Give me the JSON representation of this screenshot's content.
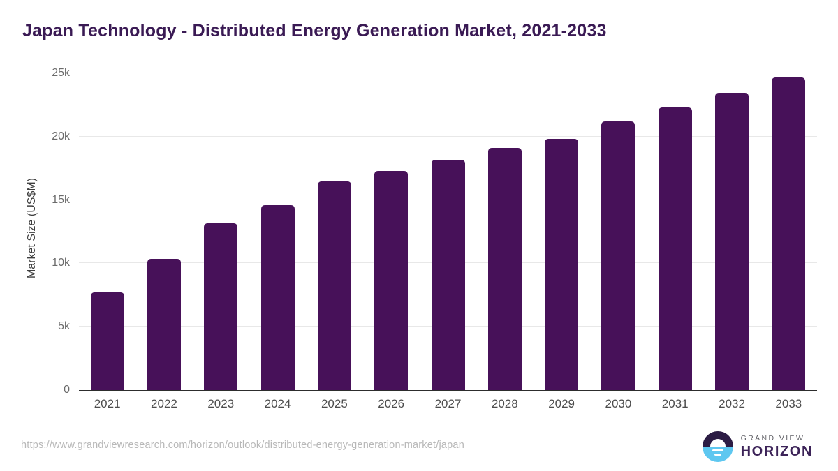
{
  "page": {
    "title": "Japan Technology - Distributed Energy Generation Market, 2021-2033",
    "source_url": "https://www.grandviewresearch.com/horizon/outlook/distributed-energy-generation-market/japan"
  },
  "logo": {
    "line1": "GRAND VIEW",
    "line2": "HORIZON"
  },
  "colors": {
    "bar": "#471159",
    "title_text": "#3a1a54",
    "axis_label_text": "#4d4d4d",
    "gridline": "#e8e8e8",
    "baseline": "#2d2d2d",
    "source_url_text": "#b8b8b8",
    "logo_dark": "#2c1c44",
    "logo_blue": "#5ec7f0"
  },
  "chart_data": {
    "type": "bar",
    "title": "Japan Technology - Distributed Energy Generation Market, 2021-2033",
    "xlabel": "",
    "ylabel": "Market Size (US$M)",
    "categories": [
      "2021",
      "2022",
      "2023",
      "2024",
      "2025",
      "2026",
      "2027",
      "2028",
      "2029",
      "2030",
      "2031",
      "2032",
      "2033"
    ],
    "values": [
      7700,
      10350,
      13150,
      14600,
      16450,
      17300,
      18150,
      19100,
      19800,
      21200,
      22300,
      23450,
      24650
    ],
    "unit": "US$M",
    "ylim": [
      0,
      25000
    ],
    "y_ticks": [
      {
        "value": 0,
        "label": "0"
      },
      {
        "value": 5000,
        "label": "5k"
      },
      {
        "value": 10000,
        "label": "10k"
      },
      {
        "value": 15000,
        "label": "15k"
      },
      {
        "value": 20000,
        "label": "20k"
      },
      {
        "value": 25000,
        "label": "25k"
      }
    ],
    "grid": "horizontal",
    "legend": "none",
    "bar_color": "#471159"
  }
}
